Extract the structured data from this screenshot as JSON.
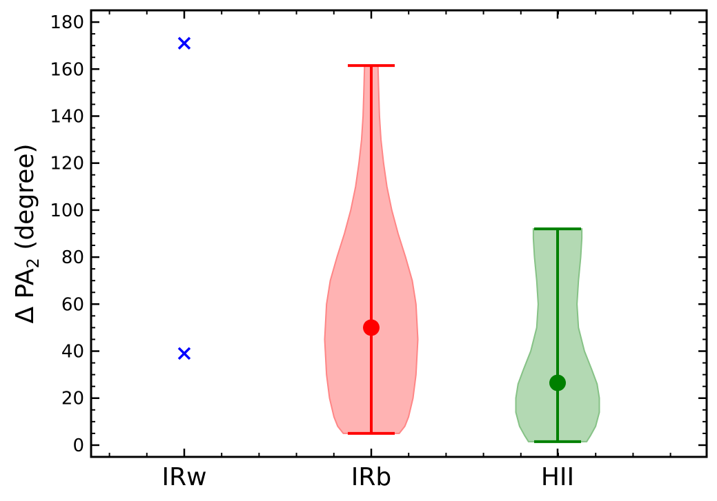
{
  "chart_data": {
    "type": "violin",
    "ylabel": {
      "prefix": "Δ PA",
      "subscript": "2",
      "suffix": " (degree)"
    },
    "ylim": [
      -5,
      185
    ],
    "yticks": [
      0,
      20,
      40,
      60,
      80,
      100,
      120,
      140,
      160,
      180
    ],
    "categories": [
      "IRw",
      "IRb",
      "HII"
    ],
    "grid": false,
    "groups": [
      {
        "category": "IRw",
        "kind": "points",
        "marker": "x",
        "color": "#0000ff",
        "points": [
          171,
          39
        ]
      },
      {
        "category": "IRb",
        "kind": "violin",
        "color": "#ff0000",
        "fill": "#ffb3b3",
        "min": 5,
        "max": 161.5,
        "median": 50,
        "density": [
          [
            5,
            0.75
          ],
          [
            8,
            0.9
          ],
          [
            12,
            1.0
          ],
          [
            20,
            1.12
          ],
          [
            30,
            1.2
          ],
          [
            45,
            1.25
          ],
          [
            60,
            1.2
          ],
          [
            70,
            1.1
          ],
          [
            80,
            0.92
          ],
          [
            90,
            0.72
          ],
          [
            100,
            0.55
          ],
          [
            110,
            0.42
          ],
          [
            120,
            0.33
          ],
          [
            130,
            0.26
          ],
          [
            140,
            0.22
          ],
          [
            150,
            0.2
          ],
          [
            161.5,
            0.18
          ]
        ]
      },
      {
        "category": "HII",
        "kind": "violin",
        "color": "#008000",
        "fill": "#b3d9b3",
        "min": 1.5,
        "max": 92,
        "median": 26.5,
        "density": [
          [
            1.5,
            0.78
          ],
          [
            4,
            0.88
          ],
          [
            8,
            1.02
          ],
          [
            14,
            1.12
          ],
          [
            20,
            1.12
          ],
          [
            26,
            1.06
          ],
          [
            32,
            0.92
          ],
          [
            40,
            0.72
          ],
          [
            50,
            0.56
          ],
          [
            60,
            0.52
          ],
          [
            70,
            0.56
          ],
          [
            80,
            0.62
          ],
          [
            88,
            0.65
          ],
          [
            92,
            0.65
          ]
        ]
      }
    ]
  }
}
